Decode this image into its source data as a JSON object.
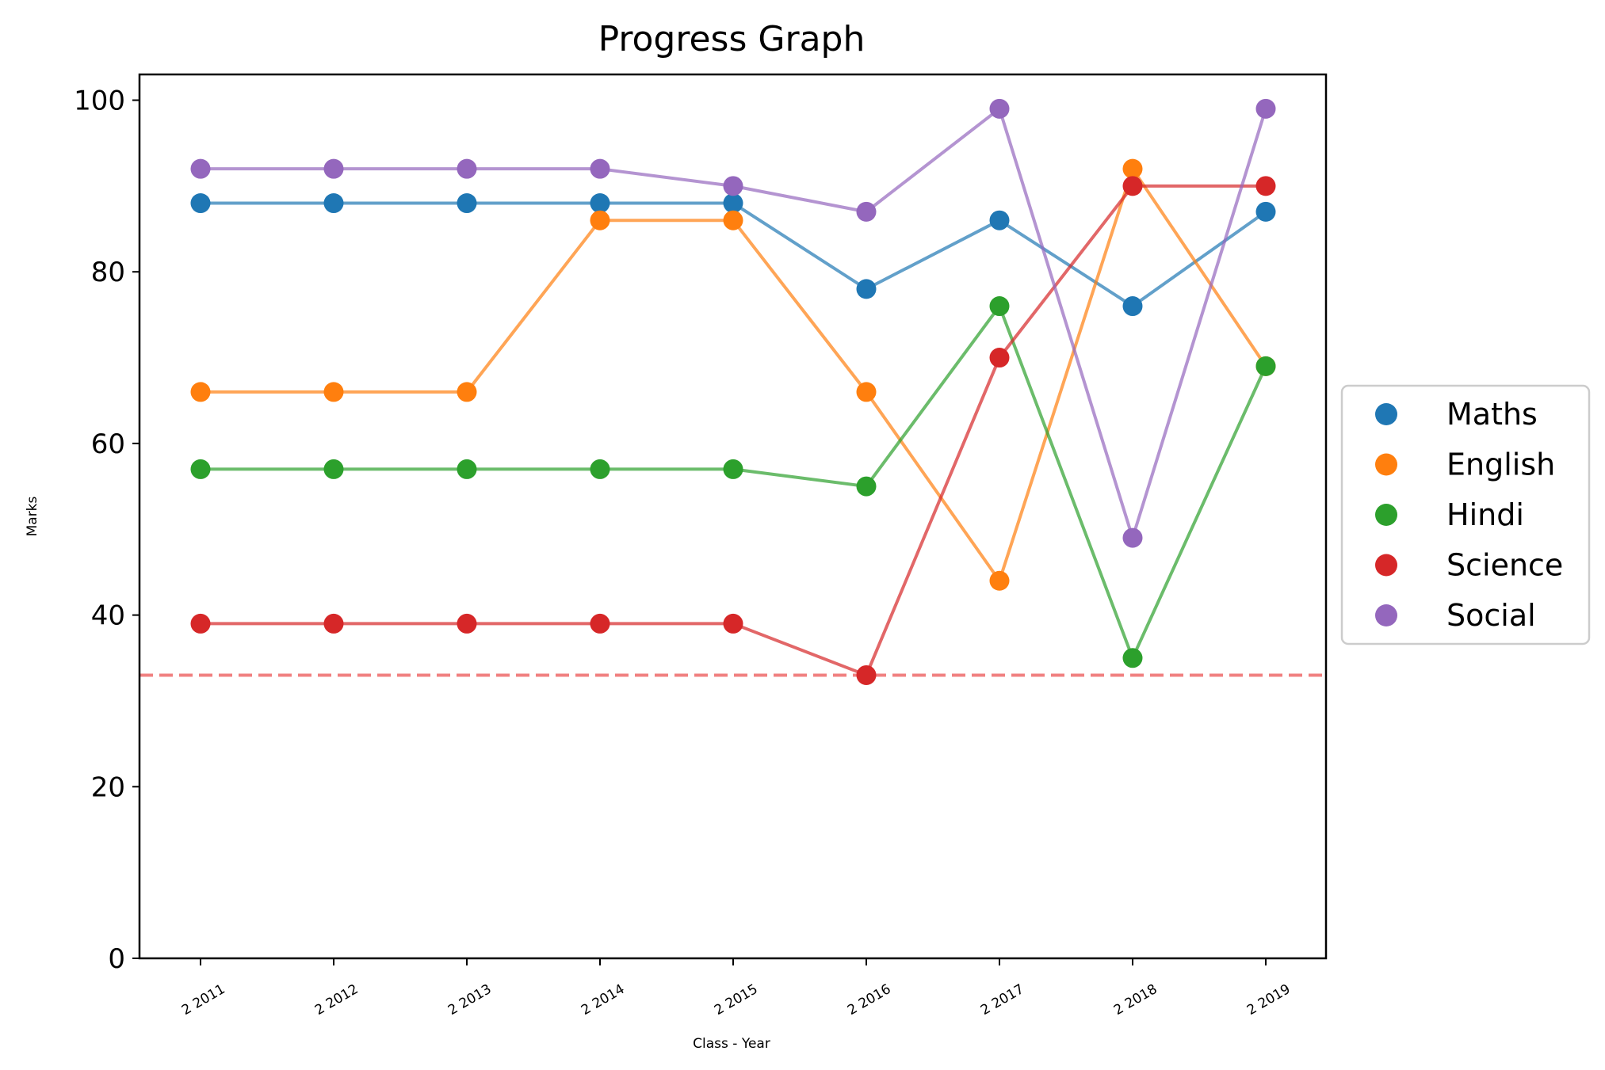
{
  "chart_data": {
    "type": "line",
    "title": "Progress Graph",
    "xlabel": "Class - Year",
    "ylabel": "Marks",
    "categories": [
      "2 2011",
      "2 2012",
      "2 2013",
      "2 2014",
      "2 2015",
      "2 2016",
      "2 2017",
      "2 2018",
      "2 2019"
    ],
    "ylim": [
      0,
      103
    ],
    "yticks": [
      0,
      20,
      40,
      60,
      80,
      100
    ],
    "grid": false,
    "legend_position": "center-right outside",
    "threshold": {
      "value": 33,
      "style": "dashed",
      "color": "#f08080"
    },
    "series": [
      {
        "name": "Maths",
        "color": "#1f77b4",
        "values": [
          88,
          88,
          88,
          88,
          88,
          78,
          86,
          76,
          87
        ]
      },
      {
        "name": "English",
        "color": "#ff7f0e",
        "values": [
          66,
          66,
          66,
          86,
          86,
          66,
          44,
          92,
          69
        ]
      },
      {
        "name": "Hindi",
        "color": "#2ca02c",
        "values": [
          57,
          57,
          57,
          57,
          57,
          55,
          76,
          35,
          69
        ]
      },
      {
        "name": "Science",
        "color": "#d62728",
        "values": [
          39,
          39,
          39,
          39,
          39,
          33,
          70,
          90,
          90
        ]
      },
      {
        "name": "Social",
        "color": "#9467bd",
        "values": [
          92,
          92,
          92,
          92,
          90,
          87,
          99,
          49,
          99
        ]
      }
    ]
  }
}
